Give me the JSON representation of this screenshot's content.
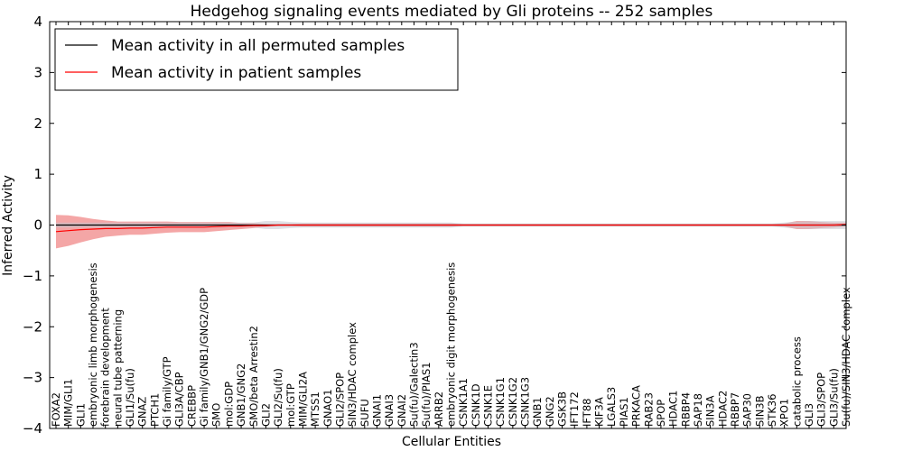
{
  "chart_data": {
    "type": "line",
    "title": "Hedgehog signaling events mediated by Gli proteins -- 252 samples",
    "xlabel": "Cellular Entities",
    "ylabel": "Inferred Activity",
    "ylim": [
      -4,
      4
    ],
    "yticks": [
      4,
      3,
      2,
      1,
      0,
      -1,
      -2,
      -3,
      -4
    ],
    "ytick_labels": [
      "4",
      "3",
      "2",
      "1",
      "0",
      "−1",
      "−2",
      "−3",
      "−4"
    ],
    "legend_position": "top-left",
    "categories": [
      "FOXA2",
      "MIM/GLI1",
      "GLI1",
      "embryonic limb morphogenesis",
      "forebrain development",
      "neural tube patterning",
      "GLI1/Su(fu)",
      "GNAZ",
      "PTCH1",
      "Gi family/GTP",
      "GLI3A/CBP",
      "CREBBP",
      "Gi family/GNB1/GNG2/GDP",
      "SMO",
      "mol:GDP",
      "GNB1/GNG2",
      "SMO/beta Arrestin2",
      "GLI2",
      "GLI2/Su(fu)",
      "mol:GTP",
      "MIM/GLI2A",
      "MTSS1",
      "GNAO1",
      "GLI2/SPOP",
      "SIN3/HDAC complex",
      "SUFU",
      "GNAI1",
      "GNAI3",
      "GNAI2",
      "Su(fu)/Galectin3",
      "Su(fu)/PIAS1",
      "ARRB2",
      "embryonic digit morphogenesis",
      "CSNK1A1",
      "CSNK1D",
      "CSNK1E",
      "CSNK1G1",
      "CSNK1G2",
      "CSNK1G3",
      "GNB1",
      "GNG2",
      "GSK3B",
      "IFT172",
      "IFT88",
      "KIF3A",
      "LGALS3",
      "PIAS1",
      "PRKACA",
      "RAB23",
      "SPOP",
      "HDAC1",
      "RBBP4",
      "SAP18",
      "SIN3A",
      "HDAC2",
      "RBBP7",
      "SAP30",
      "SIN3B",
      "STK36",
      "XPO1",
      "catabolic process",
      "GLI3",
      "GLI3/SPOP",
      "GLI3/Su(fu)",
      "Su(fu)/SIN3/HDAC complex"
    ],
    "series": [
      {
        "name": "Mean activity in all permuted samples",
        "color": "#000000",
        "band_color": "#c8c8d2",
        "values": [
          0,
          0,
          0,
          0,
          0,
          0,
          0,
          0,
          0,
          0,
          0,
          0,
          0,
          0,
          0,
          0,
          0,
          0,
          0,
          0,
          0,
          0,
          0,
          0,
          0,
          0,
          0,
          0,
          0,
          0,
          0,
          0,
          0,
          0,
          0,
          0,
          0,
          0,
          0,
          0,
          0,
          0,
          0,
          0,
          0,
          0,
          0,
          0,
          0,
          0,
          0,
          0,
          0,
          0,
          0,
          0,
          0,
          0,
          0,
          0,
          0,
          0,
          0,
          0,
          0
        ],
        "band_half_width": [
          0.05,
          0.05,
          0.05,
          0.05,
          0.05,
          0.05,
          0.05,
          0.05,
          0.05,
          0.05,
          0.05,
          0.05,
          0.05,
          0.05,
          0.05,
          0.05,
          0.05,
          0.08,
          0.08,
          0.06,
          0.05,
          0.05,
          0.05,
          0.05,
          0.05,
          0.05,
          0.05,
          0.05,
          0.05,
          0.05,
          0.05,
          0.05,
          0.05,
          0.03,
          0.03,
          0.03,
          0.03,
          0.03,
          0.03,
          0.03,
          0.03,
          0.03,
          0.03,
          0.03,
          0.03,
          0.03,
          0.03,
          0.03,
          0.03,
          0.03,
          0.03,
          0.03,
          0.03,
          0.03,
          0.03,
          0.03,
          0.03,
          0.03,
          0.03,
          0.05,
          0.07,
          0.08,
          0.08,
          0.08,
          0.08
        ]
      },
      {
        "name": "Mean activity in patient samples",
        "color": "#ff0000",
        "band_color": "#f08080",
        "values": [
          -0.13,
          -0.11,
          -0.09,
          -0.08,
          -0.07,
          -0.07,
          -0.06,
          -0.06,
          -0.05,
          -0.04,
          -0.04,
          -0.04,
          -0.04,
          -0.03,
          -0.02,
          -0.02,
          -0.01,
          -0.01,
          0,
          0,
          0,
          0,
          0,
          0,
          0,
          0,
          0,
          0,
          0,
          0,
          0,
          0,
          0,
          0,
          0,
          0,
          0,
          0,
          0,
          0,
          0,
          0,
          0,
          0,
          0,
          0,
          0,
          0,
          0,
          0,
          0,
          0,
          0,
          0,
          0,
          0,
          0,
          0,
          0,
          0,
          0,
          0,
          0,
          0,
          0.01
        ],
        "band_half_width": [
          0.33,
          0.3,
          0.25,
          0.2,
          0.16,
          0.14,
          0.13,
          0.13,
          0.12,
          0.11,
          0.1,
          0.1,
          0.1,
          0.09,
          0.08,
          0.06,
          0.05,
          0.03,
          0.02,
          0.02,
          0.03,
          0.03,
          0.03,
          0.03,
          0.03,
          0.03,
          0.03,
          0.03,
          0.03,
          0.03,
          0.03,
          0.03,
          0.03,
          0.02,
          0.02,
          0.02,
          0.02,
          0.02,
          0.02,
          0.02,
          0.02,
          0.02,
          0.02,
          0.02,
          0.02,
          0.02,
          0.02,
          0.02,
          0.02,
          0.02,
          0.02,
          0.02,
          0.02,
          0.02,
          0.02,
          0.02,
          0.02,
          0.02,
          0.02,
          0.03,
          0.08,
          0.08,
          0.06,
          0.05,
          0.04
        ]
      }
    ]
  }
}
